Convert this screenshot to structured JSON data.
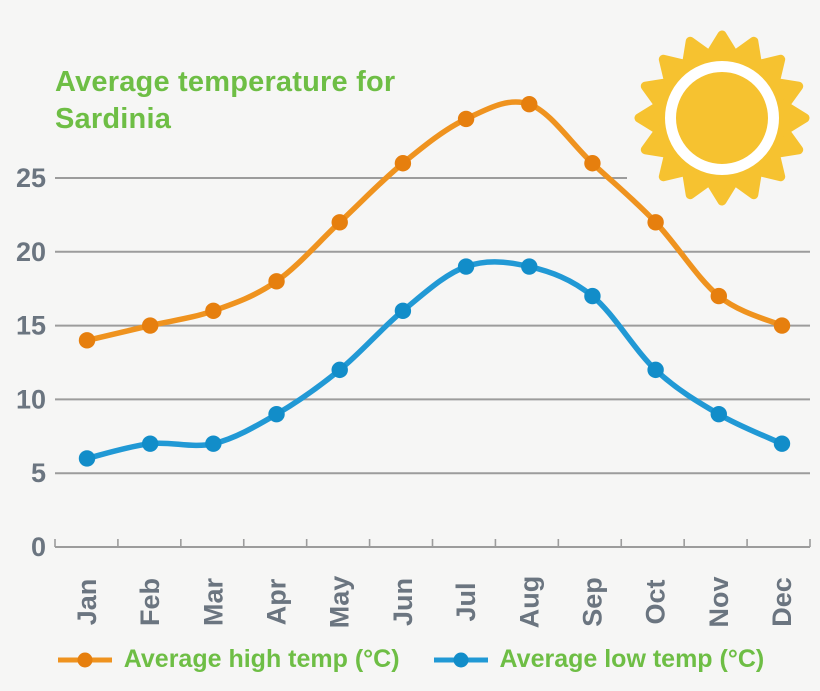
{
  "title": "Average temperature for Sardinia",
  "chart_data": {
    "type": "line",
    "categories": [
      "Jan",
      "Feb",
      "Mar",
      "Apr",
      "May",
      "Jun",
      "Jul",
      "Aug",
      "Sep",
      "Oct",
      "Nov",
      "Dec"
    ],
    "series": [
      {
        "name": "Average high temp (°C)",
        "values": [
          14,
          15,
          16,
          18,
          22,
          26,
          29,
          30,
          26,
          22,
          17,
          15
        ],
        "line_color": "#ef931f",
        "marker_color": "#e67f0e"
      },
      {
        "name": "Average low temp (°C)",
        "values": [
          6,
          7,
          7,
          9,
          12,
          16,
          19,
          19,
          17,
          12,
          9,
          7
        ],
        "line_color": "#2199d5",
        "marker_color": "#128dc9"
      }
    ],
    "yticks": [
      0,
      5,
      10,
      15,
      20,
      25
    ],
    "ylim": [
      0,
      30
    ],
    "grid": true,
    "legend_position": "bottom",
    "x_tick_label_rotation": -90
  },
  "icons": {
    "sun_icon": "☀"
  },
  "colors": {
    "background": "#f6f6f5",
    "green": "#6ebe45",
    "gridline": "#9c9c9c",
    "axis_text": "#6b7580",
    "sun_yellow": "#f6c230",
    "sun_ring": "#ffffff"
  }
}
